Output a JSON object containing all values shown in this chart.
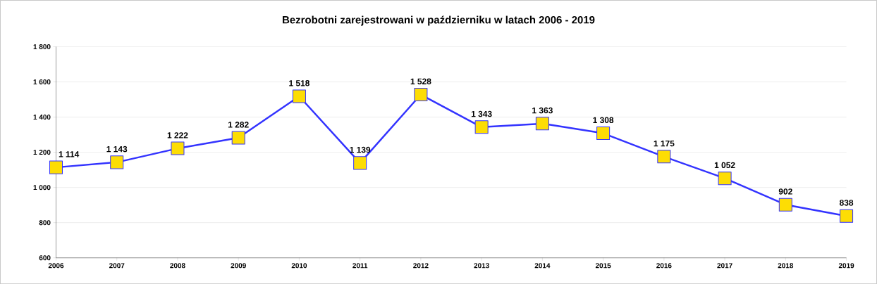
{
  "chart_data": {
    "type": "line",
    "title": "Bezrobotni zarejestrowani w październiku w latach 2006 - 2019",
    "categories": [
      "2006",
      "2007",
      "2008",
      "2009",
      "2010",
      "2011",
      "2012",
      "2013",
      "2014",
      "2015",
      "2016",
      "2017",
      "2018",
      "2019"
    ],
    "series": [
      {
        "color": "#3333ff",
        "values": [
          1114,
          1143,
          1222,
          1282,
          1518,
          1139,
          1528,
          1343,
          1363,
          1308,
          1175,
          1052,
          902,
          838
        ],
        "value_labels": [
          "1 114",
          "1 143",
          "1 222",
          "1 282",
          "1 518",
          "1 139",
          "1 528",
          "1 343",
          "1 363",
          "1 308",
          "1 175",
          "1 052",
          "902",
          "838"
        ]
      }
    ],
    "ylim": [
      600,
      1800
    ],
    "yticks": [
      {
        "value": 600,
        "label": "600"
      },
      {
        "value": 800,
        "label": "800"
      },
      {
        "value": 1000,
        "label": "1 000"
      },
      {
        "value": 1200,
        "label": "1 200"
      },
      {
        "value": 1400,
        "label": "1 400"
      },
      {
        "value": 1600,
        "label": "1 600"
      },
      {
        "value": 1800,
        "label": "1 800"
      }
    ],
    "grid": "y",
    "marker": "square",
    "line_style": "solid"
  }
}
